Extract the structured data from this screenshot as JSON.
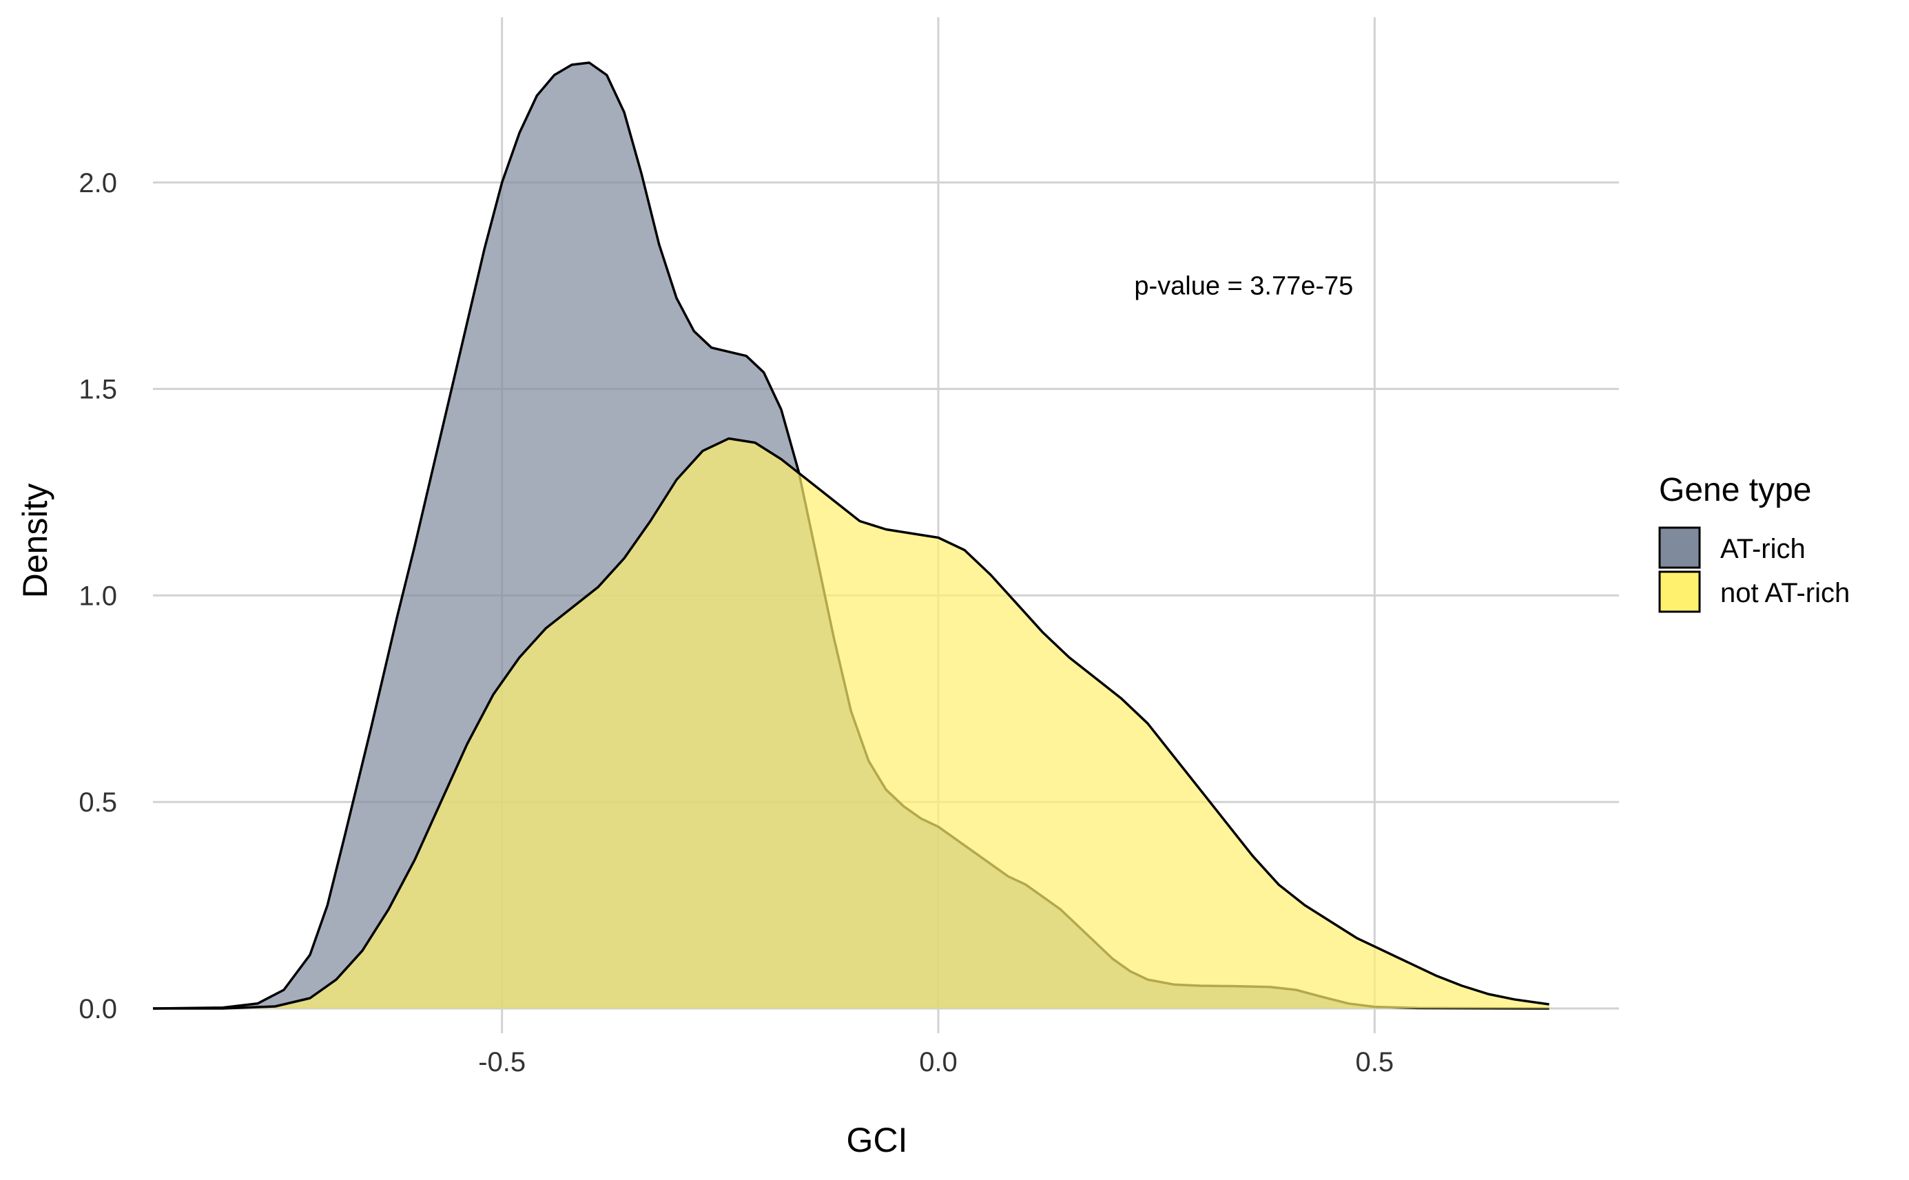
{
  "chart_data": {
    "type": "area",
    "xlabel": "GCI",
    "ylabel": "Density",
    "xlim": [
      -0.9,
      0.78
    ],
    "ylim": [
      -0.06,
      2.4
    ],
    "x_ticks": [
      -0.5,
      0.0,
      0.5
    ],
    "x_tick_labels": [
      "-0.5",
      "0.0",
      "0.5"
    ],
    "y_ticks": [
      0.0,
      0.5,
      1.0,
      1.5,
      2.0
    ],
    "y_tick_labels": [
      "0.0",
      "0.5",
      "1.0",
      "1.5",
      "2.0"
    ],
    "grid": true,
    "legend": {
      "title": "Gene type",
      "placement": "right"
    },
    "annotation": {
      "text": "p-value = 3.77e-75",
      "x": 0.35,
      "y": 1.75
    },
    "series": [
      {
        "name": "AT-rich",
        "color": "#7f8a9c",
        "points": [
          [
            -0.9,
            0.0
          ],
          [
            -0.82,
            0.002
          ],
          [
            -0.78,
            0.012
          ],
          [
            -0.75,
            0.045
          ],
          [
            -0.72,
            0.13
          ],
          [
            -0.7,
            0.25
          ],
          [
            -0.68,
            0.42
          ],
          [
            -0.65,
            0.68
          ],
          [
            -0.62,
            0.95
          ],
          [
            -0.6,
            1.12
          ],
          [
            -0.58,
            1.3
          ],
          [
            -0.56,
            1.48
          ],
          [
            -0.54,
            1.66
          ],
          [
            -0.52,
            1.84
          ],
          [
            -0.5,
            2.0
          ],
          [
            -0.48,
            2.12
          ],
          [
            -0.46,
            2.21
          ],
          [
            -0.44,
            2.26
          ],
          [
            -0.42,
            2.285
          ],
          [
            -0.4,
            2.29
          ],
          [
            -0.38,
            2.26
          ],
          [
            -0.36,
            2.17
          ],
          [
            -0.34,
            2.02
          ],
          [
            -0.32,
            1.85
          ],
          [
            -0.3,
            1.72
          ],
          [
            -0.28,
            1.64
          ],
          [
            -0.26,
            1.6
          ],
          [
            -0.24,
            1.59
          ],
          [
            -0.22,
            1.58
          ],
          [
            -0.2,
            1.54
          ],
          [
            -0.18,
            1.45
          ],
          [
            -0.16,
            1.3
          ],
          [
            -0.14,
            1.1
          ],
          [
            -0.12,
            0.9
          ],
          [
            -0.1,
            0.72
          ],
          [
            -0.08,
            0.6
          ],
          [
            -0.06,
            0.53
          ],
          [
            -0.04,
            0.49
          ],
          [
            -0.02,
            0.46
          ],
          [
            0.0,
            0.44
          ],
          [
            0.02,
            0.41
          ],
          [
            0.04,
            0.38
          ],
          [
            0.06,
            0.35
          ],
          [
            0.08,
            0.32
          ],
          [
            0.1,
            0.3
          ],
          [
            0.12,
            0.27
          ],
          [
            0.14,
            0.24
          ],
          [
            0.16,
            0.2
          ],
          [
            0.18,
            0.16
          ],
          [
            0.2,
            0.12
          ],
          [
            0.22,
            0.09
          ],
          [
            0.24,
            0.07
          ],
          [
            0.27,
            0.058
          ],
          [
            0.3,
            0.055
          ],
          [
            0.34,
            0.054
          ],
          [
            0.38,
            0.052
          ],
          [
            0.41,
            0.045
          ],
          [
            0.44,
            0.028
          ],
          [
            0.47,
            0.012
          ],
          [
            0.5,
            0.004
          ],
          [
            0.55,
            0.001
          ],
          [
            0.7,
            0.0
          ]
        ]
      },
      {
        "name": "not AT-rich",
        "color": "#fff06e",
        "points": [
          [
            -0.9,
            0.0
          ],
          [
            -0.82,
            0.0
          ],
          [
            -0.76,
            0.005
          ],
          [
            -0.72,
            0.025
          ],
          [
            -0.69,
            0.07
          ],
          [
            -0.66,
            0.14
          ],
          [
            -0.63,
            0.24
          ],
          [
            -0.6,
            0.36
          ],
          [
            -0.57,
            0.5
          ],
          [
            -0.54,
            0.64
          ],
          [
            -0.51,
            0.76
          ],
          [
            -0.48,
            0.85
          ],
          [
            -0.45,
            0.92
          ],
          [
            -0.42,
            0.97
          ],
          [
            -0.39,
            1.02
          ],
          [
            -0.36,
            1.09
          ],
          [
            -0.33,
            1.18
          ],
          [
            -0.3,
            1.28
          ],
          [
            -0.27,
            1.35
          ],
          [
            -0.24,
            1.38
          ],
          [
            -0.21,
            1.37
          ],
          [
            -0.18,
            1.33
          ],
          [
            -0.15,
            1.28
          ],
          [
            -0.12,
            1.23
          ],
          [
            -0.09,
            1.18
          ],
          [
            -0.06,
            1.16
          ],
          [
            -0.03,
            1.15
          ],
          [
            0.0,
            1.14
          ],
          [
            0.03,
            1.11
          ],
          [
            0.06,
            1.05
          ],
          [
            0.09,
            0.98
          ],
          [
            0.12,
            0.91
          ],
          [
            0.15,
            0.85
          ],
          [
            0.18,
            0.8
          ],
          [
            0.21,
            0.75
          ],
          [
            0.24,
            0.69
          ],
          [
            0.27,
            0.61
          ],
          [
            0.3,
            0.53
          ],
          [
            0.33,
            0.45
          ],
          [
            0.36,
            0.37
          ],
          [
            0.39,
            0.3
          ],
          [
            0.42,
            0.25
          ],
          [
            0.45,
            0.21
          ],
          [
            0.48,
            0.17
          ],
          [
            0.51,
            0.14
          ],
          [
            0.54,
            0.11
          ],
          [
            0.57,
            0.08
          ],
          [
            0.6,
            0.055
          ],
          [
            0.63,
            0.035
          ],
          [
            0.66,
            0.022
          ],
          [
            0.7,
            0.01
          ]
        ]
      }
    ]
  }
}
